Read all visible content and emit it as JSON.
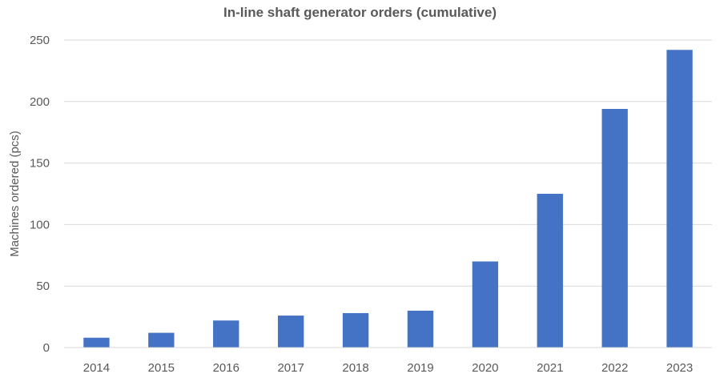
{
  "chart_data": {
    "type": "bar",
    "title": "In-line shaft generator orders (cumulative)",
    "xlabel": "",
    "ylabel": "Machines ordered (pcs)",
    "categories": [
      "2014",
      "2015",
      "2016",
      "2017",
      "2018",
      "2019",
      "2020",
      "2021",
      "2022",
      "2023"
    ],
    "values": [
      8,
      12,
      22,
      26,
      28,
      30,
      70,
      125,
      194,
      242
    ],
    "ylim": [
      0,
      250
    ],
    "yticks": [
      0,
      50,
      100,
      150,
      200,
      250
    ],
    "grid": true,
    "legend": "none",
    "colors": {
      "bar": "#4472C4",
      "grid": "#D9D9D9",
      "text": "#595959"
    }
  }
}
